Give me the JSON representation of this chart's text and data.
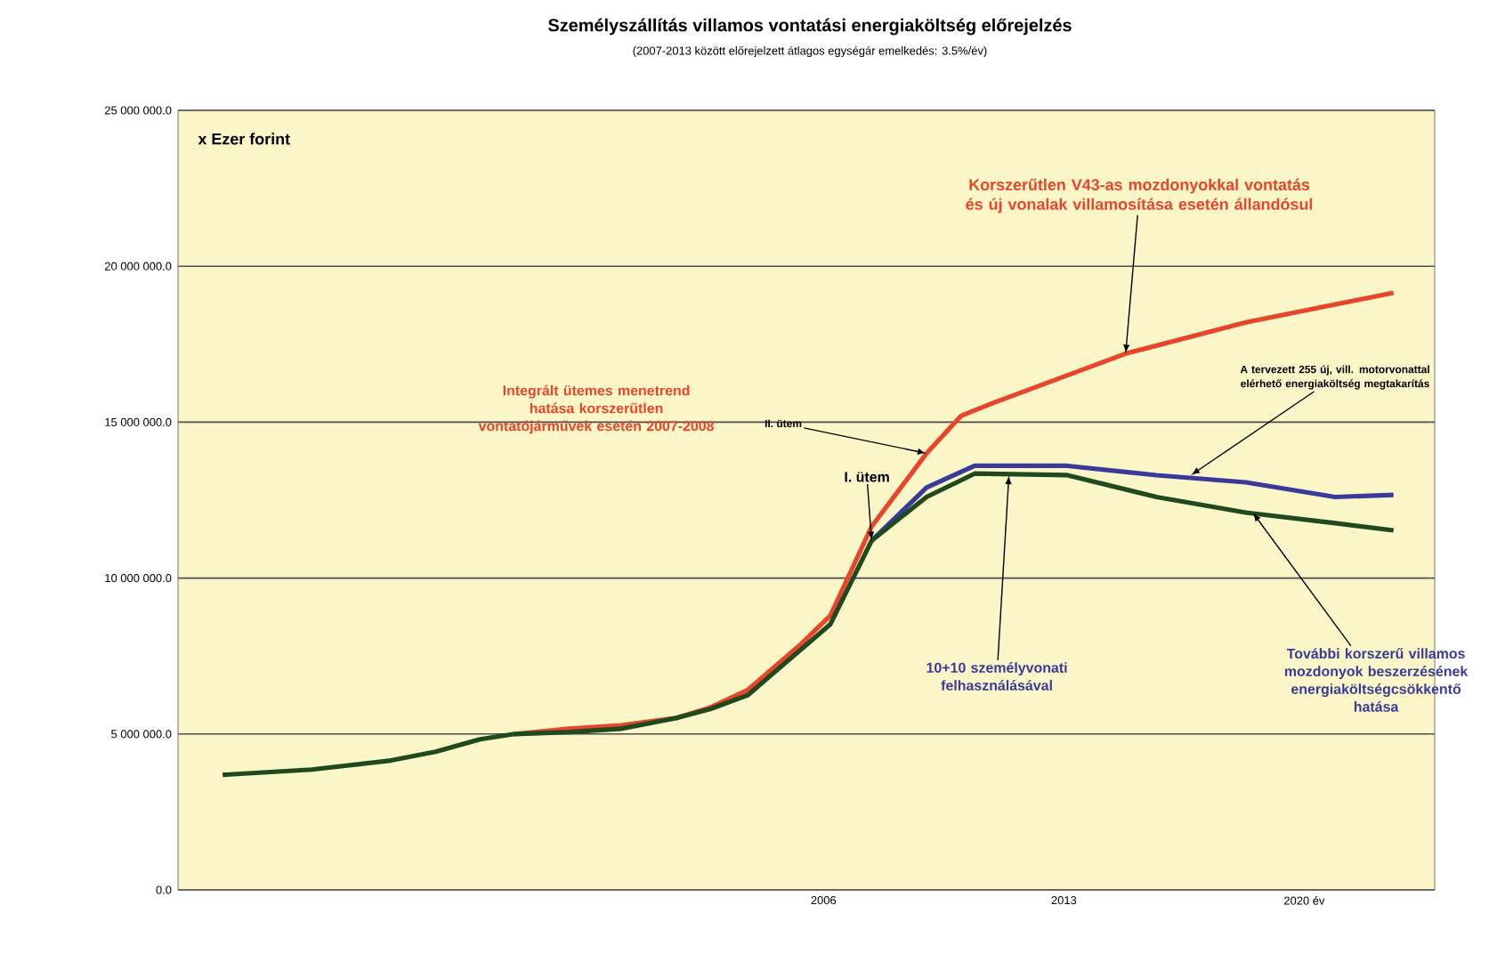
{
  "chart_data": {
    "type": "line",
    "title": "Személyszállítás villamos vontatási energiaköltség előrejelzés",
    "subtitle": "(2007-2013 között előrejelzett átlagos egységár emelkedés: 3.5%/év)",
    "xlim": [
      1987.2,
      2023.8
    ],
    "xticks": [
      2006,
      2013,
      {
        "value": 2020,
        "label": "2020 év"
      }
    ],
    "ylim": [
      0,
      25000000
    ],
    "yticks": [
      {
        "value": 0,
        "label": "0.0"
      },
      {
        "value": 5000000,
        "label": "5 000 000.0"
      },
      {
        "value": 10000000,
        "label": "10 000 000.0"
      },
      {
        "value": 15000000,
        "label": "15 000 000.0"
      },
      {
        "value": 20000000,
        "label": "20 000 000.0"
      },
      {
        "value": 25000000,
        "label": "25 000 000.0"
      }
    ],
    "grid": "y",
    "series": [
      {
        "color": "#e8452a",
        "x": [
          1997.0,
          1998.6,
          2000.1,
          2001.7,
          2002.7,
          2003.8,
          2005.3,
          2006.2,
          2007.4,
          2009.0,
          2010.0,
          2010.9,
          2014.8,
          2018.3,
          2022.6
        ],
        "values": [
          5000000,
          5170000,
          5280000,
          5510000,
          5850000,
          6420000,
          7840000,
          8800000,
          11650000,
          14000000,
          15200000,
          15600000,
          17200000,
          18200000,
          19150000
        ]
      },
      {
        "color": "#3a3a9a",
        "x": [
          2007.4,
          2009.0,
          2010.4,
          2013.1,
          2015.7,
          2018.3,
          2020.9,
          2022.6
        ],
        "values": [
          11200000,
          12900000,
          13600000,
          13600000,
          13300000,
          13070000,
          12600000,
          12670000
        ]
      },
      {
        "color": "#1f4a1f",
        "x": [
          1988.5,
          1991.1,
          1993.4,
          1994.7,
          1996.0,
          1997.0,
          1998.6,
          2000.1,
          2001.7,
          2002.7,
          2003.8,
          2004.4,
          2005.3,
          2006.2,
          2007.4,
          2009.0,
          2010.4,
          2013.1,
          2015.7,
          2018.3,
          2020.9,
          2022.6
        ],
        "values": [
          3690000,
          3860000,
          4150000,
          4430000,
          4830000,
          5000000,
          5060000,
          5170000,
          5510000,
          5800000,
          6250000,
          6820000,
          7670000,
          8520000,
          11200000,
          12600000,
          13350000,
          13300000,
          12600000,
          12100000,
          11760000,
          11530000
        ]
      }
    ],
    "annotations": [
      "x Ezer forint",
      {
        "text": "Korszerűtlen V43-as mozdonyokkal vontatás és új vonalak villamosítása esetén állandósul",
        "x": 2014.8,
        "y": 17200000
      },
      "Integrált ütemes menetrend hatása korszerűtlen vontatójárművek esetén 2007-2008",
      {
        "text": "II. ütem",
        "x": 2009.0,
        "y": 14000000
      },
      {
        "text": "I. ütem",
        "x": 2007.4,
        "y": 11200000
      },
      {
        "text": "A tervezett 255 új, vill. motorvonattal elérhető energiaköltség megtakarítás",
        "x": 2016.7,
        "y": 13300000
      },
      {
        "text": "10+10 személyvonati felhasználásával",
        "x": 2011.4,
        "y": 13300000
      },
      {
        "text": "További korszerű villamos mozdonyok beszerzésének energiaköltségcsökkentő hatása",
        "x": 2018.5,
        "y": 12100000
      }
    ]
  }
}
